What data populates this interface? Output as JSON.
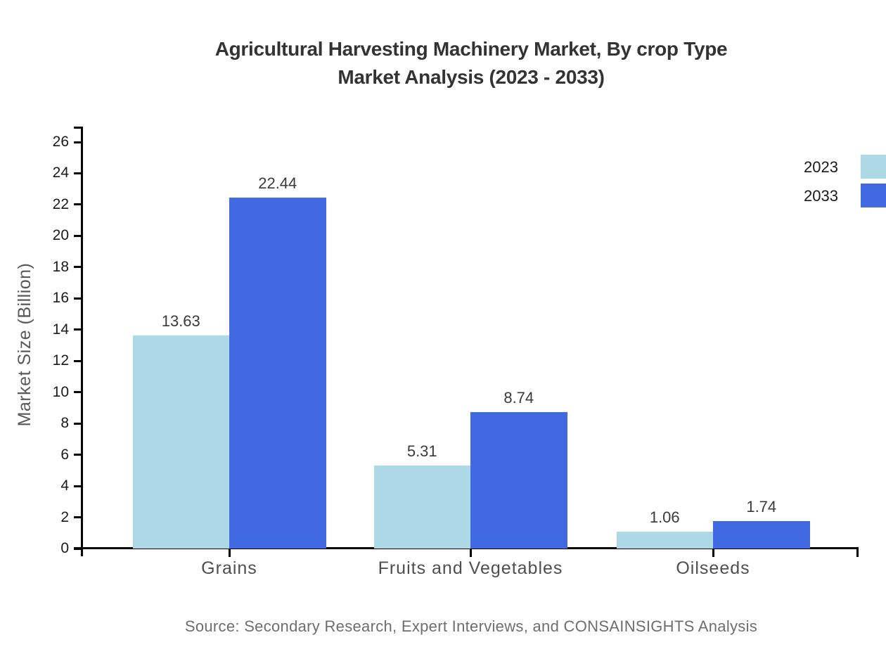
{
  "title": {
    "line1": "Agricultural Harvesting Machinery Market, By crop Type",
    "line2": "Market Analysis (2023 - 2033)"
  },
  "source": "Source: Secondary Research, Expert Interviews, and CONSAINSIGHTS Analysis",
  "chart_data": {
    "type": "bar",
    "title": "Agricultural Harvesting Machinery Market, By crop Type Market Analysis (2023 - 2033)",
    "categories": [
      "Grains",
      "Fruits and Vegetables",
      "Oilseeds"
    ],
    "series": [
      {
        "name": "2023",
        "color": "#ADD8E6",
        "values": [
          13.63,
          5.31,
          1.06
        ]
      },
      {
        "name": "2033",
        "color": "#4169E1",
        "values": [
          22.44,
          8.74,
          1.74
        ]
      }
    ],
    "xlabel": "",
    "ylabel": "Market Size (Billion)",
    "ylim": [
      0,
      26
    ],
    "ytick_step": 2,
    "yticks": [
      0,
      2,
      4,
      6,
      8,
      10,
      12,
      14,
      16,
      18,
      20,
      22,
      24,
      26
    ],
    "grid": false,
    "legend_position": "top-right",
    "axis_color": "#000000",
    "value_labels": [
      "13.63",
      "22.44",
      "5.31",
      "8.74",
      "1.06",
      "1.74"
    ]
  }
}
